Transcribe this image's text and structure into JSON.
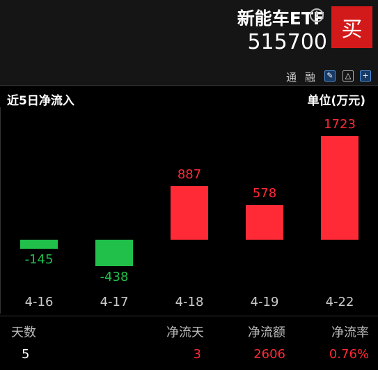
{
  "header": {
    "fund_name": "新能车ETF",
    "fund_code": "515700",
    "buy_label": "买",
    "info_icon": "info-icon"
  },
  "toolbar": {
    "tong": "通",
    "rong": "融",
    "icons": [
      "edit-icon",
      "bell-icon",
      "add-icon"
    ]
  },
  "panel": {
    "title": "近5日净流入",
    "unit": "单位(万元)"
  },
  "colors": {
    "positive": "#ff2a36",
    "negative": "#20c04a",
    "buy": "#d31a1a"
  },
  "chart_data": {
    "type": "bar",
    "categories": [
      "4-16",
      "4-17",
      "4-18",
      "4-19",
      "4-22"
    ],
    "values": [
      -145,
      -438,
      887,
      578,
      1723
    ]
  },
  "stats": {
    "labels": [
      "天数",
      "净流天",
      "净流额",
      "净流率"
    ],
    "values": [
      "5",
      "3",
      "2606",
      "0.76%"
    ]
  }
}
